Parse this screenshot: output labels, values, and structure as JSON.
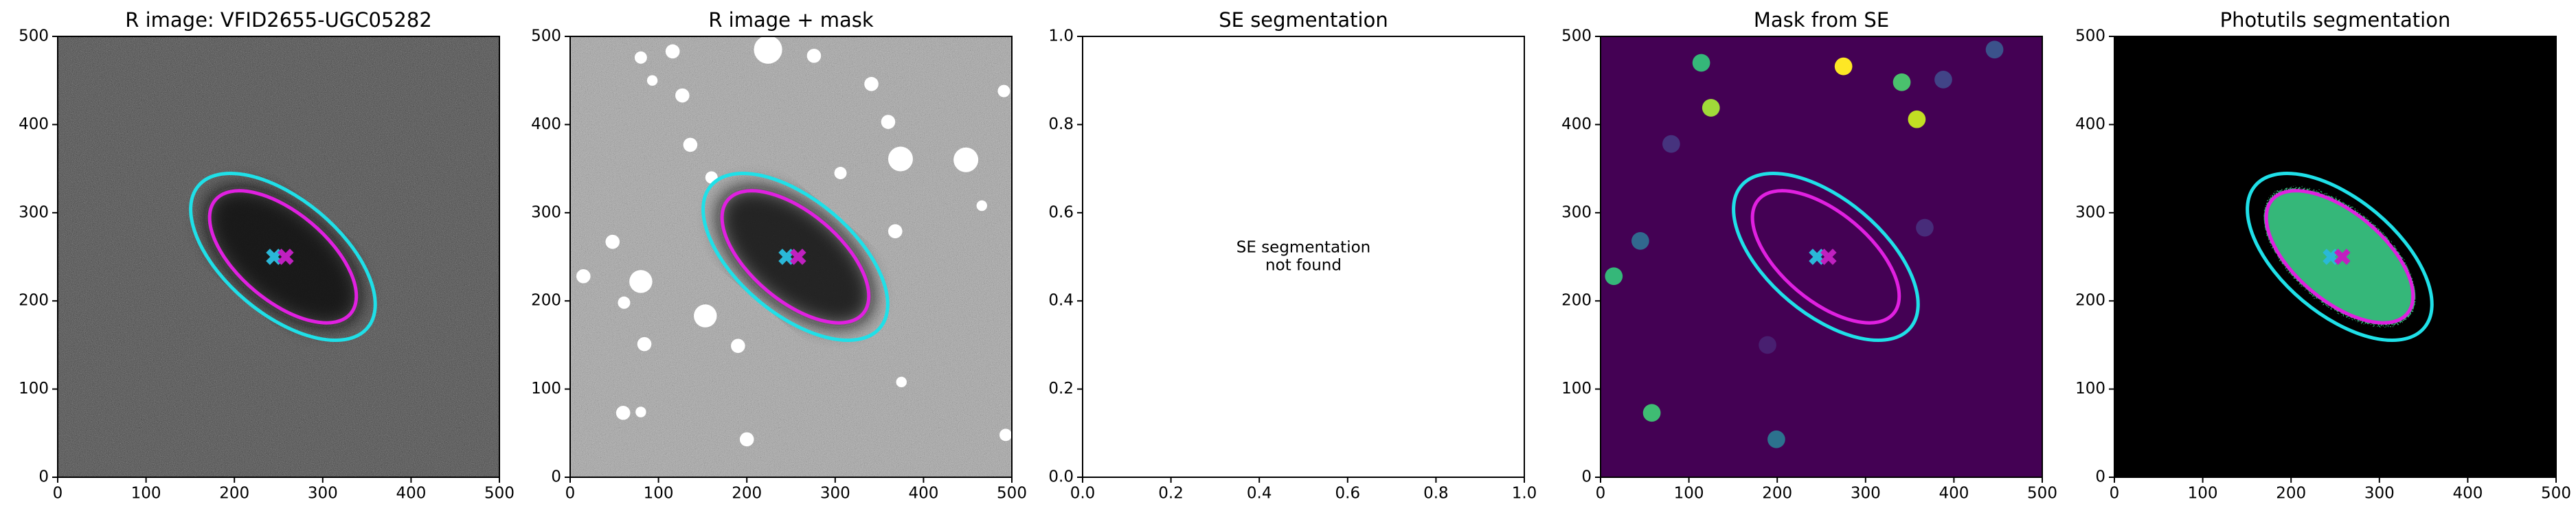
{
  "chart_data": [
    {
      "type": "image",
      "title": "R image: VFID2655-UGC05282",
      "background": "#4c4c4c",
      "noise": true,
      "galaxy": true,
      "xlim": [
        0,
        500
      ],
      "ylim": [
        0,
        500
      ],
      "xticks": [
        0,
        100,
        200,
        300,
        400,
        500
      ],
      "yticks": [
        0,
        100,
        200,
        300,
        400,
        500
      ],
      "ellipses": [
        {
          "x": 255,
          "y": 250,
          "a": 125,
          "b": 65,
          "angle": -40,
          "color": "#1fe0e8"
        },
        {
          "x": 255,
          "y": 250,
          "a": 100,
          "b": 50,
          "angle": -40,
          "color": "#e020e0"
        }
      ],
      "markers": [
        {
          "x": 245,
          "y": 250,
          "color": "#2ab8d8"
        },
        {
          "x": 258,
          "y": 250,
          "color": "#c020c0"
        }
      ]
    },
    {
      "type": "image",
      "title": "R image + mask",
      "background": "#a8a8a8",
      "noise": true,
      "galaxy": true,
      "xlim": [
        0,
        500
      ],
      "ylim": [
        0,
        500
      ],
      "xticks": [
        0,
        100,
        200,
        300,
        400,
        500
      ],
      "yticks": [
        0,
        100,
        200,
        300,
        400,
        500
      ],
      "ellipses": [
        {
          "x": 255,
          "y": 250,
          "a": 125,
          "b": 65,
          "angle": -40,
          "color": "#1fe0e8"
        },
        {
          "x": 255,
          "y": 250,
          "a": 100,
          "b": 50,
          "angle": -40,
          "color": "#e020e0"
        }
      ],
      "markers": [
        {
          "x": 245,
          "y": 250,
          "color": "#2ab8d8"
        },
        {
          "x": 258,
          "y": 250,
          "color": "#c020c0"
        }
      ],
      "blobs": [
        {
          "x": 224,
          "y": 485,
          "r": 16,
          "color": "#ffffff"
        },
        {
          "x": 116,
          "y": 483,
          "r": 8,
          "color": "#ffffff"
        },
        {
          "x": 80,
          "y": 476,
          "r": 7,
          "color": "#ffffff"
        },
        {
          "x": 276,
          "y": 478,
          "r": 8,
          "color": "#ffffff"
        },
        {
          "x": 93,
          "y": 450,
          "r": 6,
          "color": "#ffffff"
        },
        {
          "x": 127,
          "y": 433,
          "r": 8,
          "color": "#ffffff"
        },
        {
          "x": 341,
          "y": 446,
          "r": 8,
          "color": "#ffffff"
        },
        {
          "x": 360,
          "y": 403,
          "r": 8,
          "color": "#ffffff"
        },
        {
          "x": 491,
          "y": 438,
          "r": 7,
          "color": "#ffffff"
        },
        {
          "x": 136,
          "y": 377,
          "r": 8,
          "color": "#ffffff"
        },
        {
          "x": 374,
          "y": 361,
          "r": 14,
          "color": "#ffffff"
        },
        {
          "x": 448,
          "y": 360,
          "r": 14,
          "color": "#ffffff"
        },
        {
          "x": 306,
          "y": 345,
          "r": 7,
          "color": "#ffffff"
        },
        {
          "x": 160,
          "y": 340,
          "r": 7,
          "color": "#ffffff"
        },
        {
          "x": 368,
          "y": 279,
          "r": 8,
          "color": "#ffffff"
        },
        {
          "x": 48,
          "y": 267,
          "r": 8,
          "color": "#ffffff"
        },
        {
          "x": 466,
          "y": 308,
          "r": 6,
          "color": "#ffffff"
        },
        {
          "x": 80,
          "y": 222,
          "r": 13,
          "color": "#ffffff"
        },
        {
          "x": 61,
          "y": 198,
          "r": 7,
          "color": "#ffffff"
        },
        {
          "x": 153,
          "y": 183,
          "r": 13,
          "color": "#ffffff"
        },
        {
          "x": 190,
          "y": 149,
          "r": 8,
          "color": "#ffffff"
        },
        {
          "x": 15,
          "y": 228,
          "r": 8,
          "color": "#ffffff"
        },
        {
          "x": 84,
          "y": 151,
          "r": 8,
          "color": "#ffffff"
        },
        {
          "x": 375,
          "y": 108,
          "r": 6,
          "color": "#ffffff"
        },
        {
          "x": 60,
          "y": 73,
          "r": 8,
          "color": "#ffffff"
        },
        {
          "x": 80,
          "y": 74,
          "r": 6,
          "color": "#ffffff"
        },
        {
          "x": 200,
          "y": 43,
          "r": 8,
          "color": "#ffffff"
        },
        {
          "x": 493,
          "y": 48,
          "r": 7,
          "color": "#ffffff"
        }
      ]
    },
    {
      "type": "empty",
      "title": "SE segmentation",
      "background": "#ffffff",
      "xlim": [
        0,
        1
      ],
      "ylim": [
        0,
        1
      ],
      "xticks": [
        {
          "value": 0,
          "label": "0.0"
        },
        {
          "value": 0.2,
          "label": "0.2"
        },
        {
          "value": 0.4,
          "label": "0.4"
        },
        {
          "value": 0.6,
          "label": "0.6"
        },
        {
          "value": 0.8,
          "label": "0.8"
        },
        {
          "value": 1,
          "label": "1.0"
        }
      ],
      "yticks": [
        {
          "value": 0,
          "label": "0.0"
        },
        {
          "value": 0.2,
          "label": "0.2"
        },
        {
          "value": 0.4,
          "label": "0.4"
        },
        {
          "value": 0.6,
          "label": "0.6"
        },
        {
          "value": 0.8,
          "label": "0.8"
        },
        {
          "value": 1,
          "label": "1.0"
        }
      ],
      "annotation": [
        "SE segmentation",
        "not found"
      ]
    },
    {
      "type": "image",
      "title": "Mask from SE",
      "background": "#440154",
      "noise": false,
      "galaxy": false,
      "xlim": [
        0,
        500
      ],
      "ylim": [
        0,
        500
      ],
      "xticks": [
        0,
        100,
        200,
        300,
        400,
        500
      ],
      "yticks": [
        0,
        100,
        200,
        300,
        400,
        500
      ],
      "ellipses": [
        {
          "x": 255,
          "y": 250,
          "a": 125,
          "b": 65,
          "angle": -40,
          "color": "#1fe0e8"
        },
        {
          "x": 255,
          "y": 250,
          "a": 100,
          "b": 50,
          "angle": -40,
          "color": "#e020e0"
        }
      ],
      "markers": [
        {
          "x": 245,
          "y": 250,
          "color": "#2ab8d8"
        },
        {
          "x": 258,
          "y": 250,
          "color": "#c020c0"
        }
      ],
      "blobs": [
        {
          "x": 114,
          "y": 470,
          "r": 10,
          "color": "#35b779"
        },
        {
          "x": 275,
          "y": 466,
          "r": 10,
          "color": "#fde725"
        },
        {
          "x": 341,
          "y": 448,
          "r": 10,
          "color": "#4ac16d"
        },
        {
          "x": 388,
          "y": 451,
          "r": 10,
          "color": "#414487"
        },
        {
          "x": 446,
          "y": 485,
          "r": 10,
          "color": "#3b528b"
        },
        {
          "x": 125,
          "y": 419,
          "r": 10,
          "color": "#a0da39"
        },
        {
          "x": 358,
          "y": 406,
          "r": 10,
          "color": "#c2df23"
        },
        {
          "x": 80,
          "y": 378,
          "r": 10,
          "color": "#46337e"
        },
        {
          "x": 45,
          "y": 268,
          "r": 10,
          "color": "#31688e"
        },
        {
          "x": 15,
          "y": 228,
          "r": 10,
          "color": "#35b779"
        },
        {
          "x": 367,
          "y": 283,
          "r": 10,
          "color": "#472c7a"
        },
        {
          "x": 189,
          "y": 150,
          "r": 10,
          "color": "#481f70"
        },
        {
          "x": 58,
          "y": 73,
          "r": 10,
          "color": "#3fbc73"
        },
        {
          "x": 199,
          "y": 43,
          "r": 10,
          "color": "#2c728e"
        }
      ]
    },
    {
      "type": "image",
      "title": "Photutils segmentation",
      "background": "#000000",
      "noise": false,
      "galaxy": false,
      "segment": "#35b779",
      "xlim": [
        0,
        500
      ],
      "ylim": [
        0,
        500
      ],
      "xticks": [
        0,
        100,
        200,
        300,
        400,
        500
      ],
      "yticks": [
        0,
        100,
        200,
        300,
        400,
        500
      ],
      "ellipses": [
        {
          "x": 255,
          "y": 250,
          "a": 125,
          "b": 65,
          "angle": -40,
          "color": "#1fe0e8"
        },
        {
          "x": 255,
          "y": 250,
          "a": 100,
          "b": 50,
          "angle": -40,
          "color": "#e020e0"
        }
      ],
      "markers": [
        {
          "x": 245,
          "y": 250,
          "color": "#2ab8d8"
        },
        {
          "x": 258,
          "y": 250,
          "color": "#c020c0"
        }
      ]
    }
  ]
}
